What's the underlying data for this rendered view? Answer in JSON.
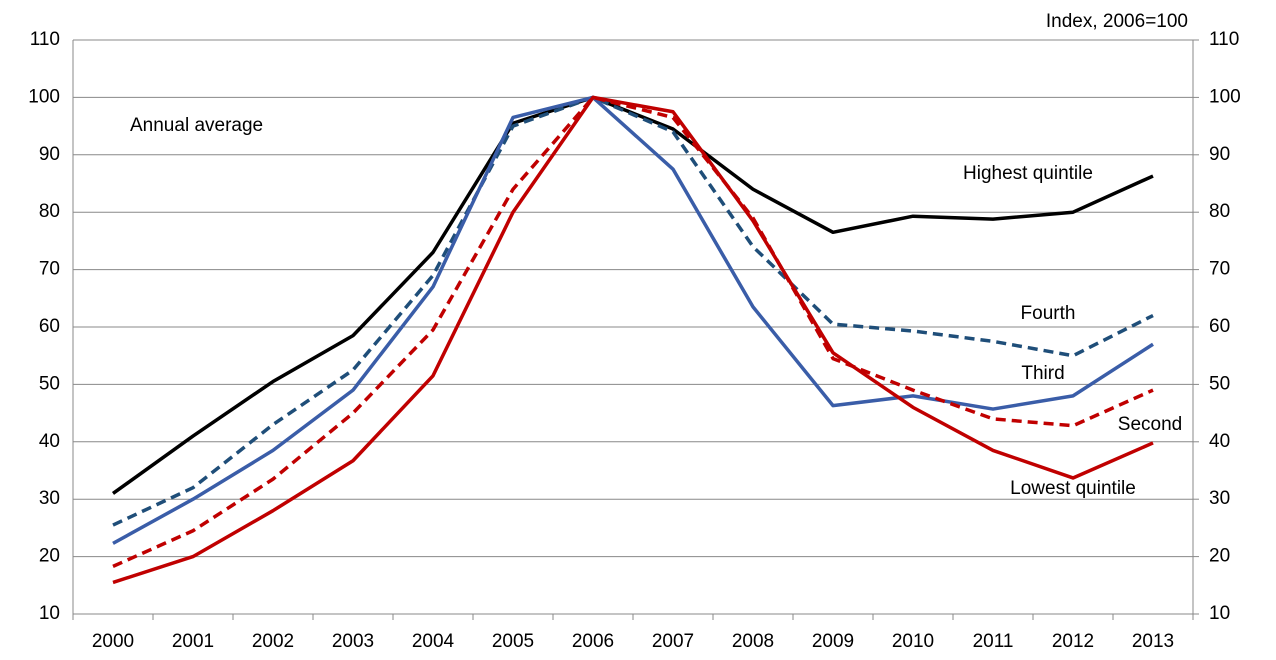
{
  "chart_data": {
    "type": "line",
    "annotations": [
      "Index, 2006=100",
      "Annual average"
    ],
    "categories": [
      "2000",
      "2001",
      "2002",
      "2003",
      "2004",
      "2005",
      "2006",
      "2007",
      "2008",
      "2009",
      "2010",
      "2011",
      "2012",
      "2013"
    ],
    "series": [
      {
        "name": "Highest quintile",
        "color": "#000000",
        "dash": false,
        "values": [
          31,
          41,
          50.5,
          58.5,
          73,
          95.5,
          100,
          94.5,
          84,
          76.5,
          79.3,
          78.8,
          80,
          86.3
        ]
      },
      {
        "name": "Fourth",
        "color": "#1f4e79",
        "dash": true,
        "values": [
          25.5,
          32,
          43,
          52.5,
          69,
          95,
          100,
          94,
          74,
          60.5,
          59.3,
          57.5,
          55,
          62
        ]
      },
      {
        "name": "Third",
        "color": "#3a5da8",
        "dash": false,
        "values": [
          22.3,
          30,
          38.5,
          49,
          67,
          96.5,
          100,
          87.5,
          63.5,
          46.3,
          48,
          45.7,
          48,
          57
        ]
      },
      {
        "name": "Second",
        "color": "#c00000",
        "dash": true,
        "values": [
          18.3,
          24.5,
          33.5,
          45,
          59.5,
          84,
          100,
          96.5,
          79,
          54.5,
          49,
          44,
          42.8,
          49
        ]
      },
      {
        "name": "Lowest quintile",
        "color": "#c00000",
        "dash": false,
        "values": [
          15.5,
          20,
          28,
          36.7,
          51.5,
          80,
          100,
          97.5,
          78.5,
          55.5,
          46,
          38.5,
          33.7,
          39.8
        ]
      }
    ],
    "ylim": [
      10,
      110
    ],
    "yticks": [
      10,
      20,
      30,
      40,
      50,
      60,
      70,
      80,
      90,
      100,
      110
    ],
    "y2lim": [
      10,
      110
    ],
    "y2ticks": [
      10,
      20,
      30,
      40,
      50,
      60,
      70,
      80,
      90,
      100,
      110
    ],
    "grid": true
  }
}
